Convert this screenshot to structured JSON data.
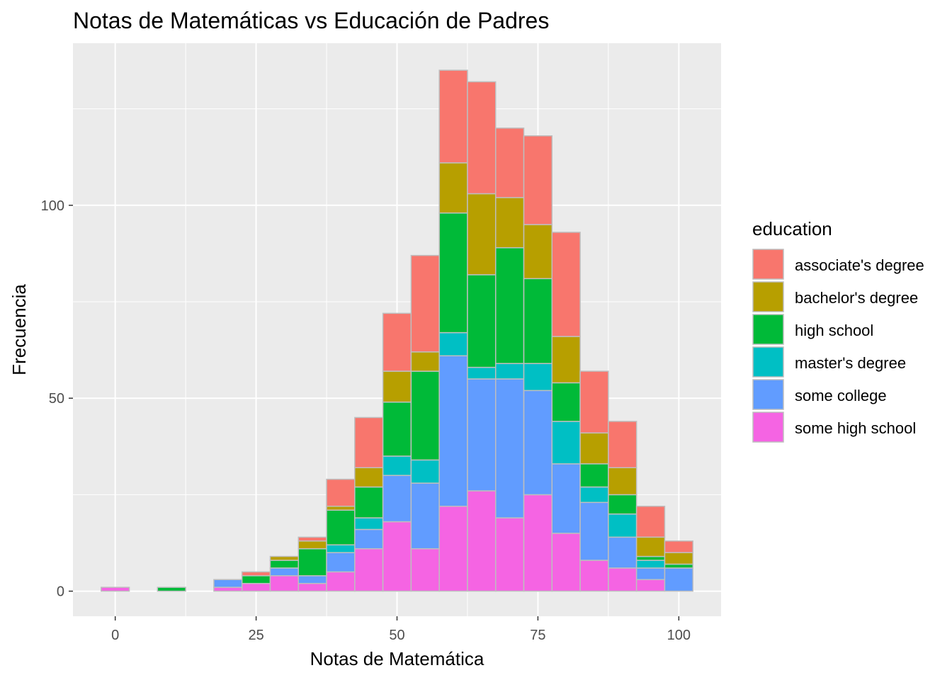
{
  "chart_data": {
    "type": "bar",
    "stacked": true,
    "title": "Notas de Matemáticas vs Educación de Padres",
    "xlabel": "Notas de Matemática",
    "ylabel": "Frecuencia",
    "xlim": [
      -7.5,
      107.5
    ],
    "ylim": [
      -6.5,
      142
    ],
    "x_ticks": [
      0,
      25,
      50,
      75,
      100
    ],
    "y_ticks": [
      0,
      50,
      100
    ],
    "bin_width": 5,
    "x": [
      0,
      5,
      10,
      15,
      20,
      25,
      30,
      35,
      40,
      45,
      50,
      55,
      60,
      65,
      70,
      75,
      80,
      85,
      90,
      95,
      100
    ],
    "legend": {
      "title": "education",
      "position": "right"
    },
    "series": [
      {
        "name": "some high school",
        "color": "#F564E3",
        "values": [
          1,
          0,
          0,
          0,
          1,
          2,
          4,
          2,
          5,
          11,
          18,
          11,
          22,
          26,
          19,
          25,
          15,
          8,
          6,
          3,
          0
        ]
      },
      {
        "name": "some college",
        "color": "#619CFF",
        "values": [
          0,
          0,
          0,
          0,
          2,
          0,
          2,
          2,
          5,
          5,
          12,
          17,
          39,
          29,
          36,
          27,
          18,
          15,
          8,
          3,
          6
        ]
      },
      {
        "name": "master's degree",
        "color": "#00BFC4",
        "values": [
          0,
          0,
          0,
          0,
          0,
          0,
          0,
          0,
          2,
          3,
          5,
          6,
          6,
          3,
          4,
          7,
          11,
          4,
          6,
          2,
          0
        ]
      },
      {
        "name": "high school",
        "color": "#00BA38",
        "values": [
          0,
          0,
          1,
          0,
          0,
          2,
          2,
          7,
          9,
          8,
          14,
          23,
          31,
          24,
          30,
          22,
          10,
          6,
          5,
          1,
          1
        ]
      },
      {
        "name": "bachelor's degree",
        "color": "#B79F00",
        "values": [
          0,
          0,
          0,
          0,
          0,
          0,
          1,
          2,
          1,
          5,
          8,
          5,
          13,
          21,
          13,
          14,
          12,
          8,
          7,
          5,
          3
        ]
      },
      {
        "name": "associate's degree",
        "color": "#F8766D",
        "values": [
          0,
          0,
          0,
          0,
          0,
          1,
          0,
          1,
          7,
          13,
          15,
          25,
          24,
          29,
          18,
          23,
          27,
          16,
          12,
          8,
          3
        ]
      }
    ],
    "legend_order": [
      "associate's degree",
      "bachelor's degree",
      "high school",
      "master's degree",
      "some college",
      "some high school"
    ]
  }
}
